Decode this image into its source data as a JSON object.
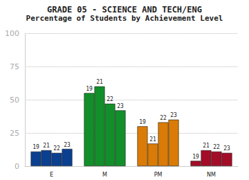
{
  "chart_data": {
    "type": "bar",
    "title": "GRADE 05 - SCIENCE AND TECH/ENG",
    "subtitle": "Percentage of Students by Achievement Level",
    "categories": [
      "E",
      "M",
      "PM",
      "NM"
    ],
    "series": [
      {
        "name": "19",
        "values": [
          11,
          55,
          30,
          4
        ],
        "colors": [
          "#0b3f8f",
          "#128f2a",
          "#d97b06",
          "#a30d27"
        ]
      },
      {
        "name": "21",
        "values": [
          12,
          60,
          17,
          12
        ],
        "colors": [
          "#0b3f8f",
          "#128f2a",
          "#d97b06",
          "#a30d27"
        ]
      },
      {
        "name": "22",
        "values": [
          10,
          47,
          33,
          11
        ],
        "colors": [
          "#0b3f8f",
          "#128f2a",
          "#d97b06",
          "#a30d27"
        ]
      },
      {
        "name": "23",
        "values": [
          13,
          42,
          35,
          10
        ],
        "colors": [
          "#0b3f8f",
          "#128f2a",
          "#d97b06",
          "#a30d27"
        ]
      }
    ],
    "ylim": [
      0,
      100
    ],
    "yticks": [
      0,
      25,
      50,
      75,
      100
    ],
    "grid": true
  }
}
